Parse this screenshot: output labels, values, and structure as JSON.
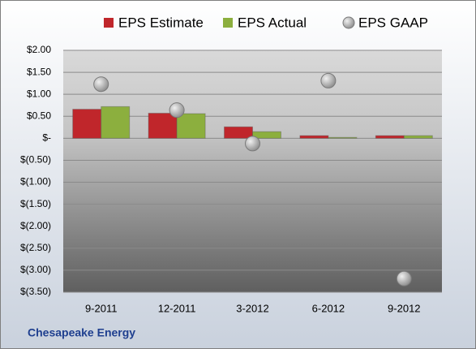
{
  "chart_data": {
    "type": "bar",
    "title": "Chesapeake Energy",
    "categories": [
      "9-2011",
      "12-2011",
      "3-2012",
      "6-2012",
      "9-2012"
    ],
    "series": [
      {
        "name": "EPS Estimate",
        "type": "bar",
        "color": "#c0262b",
        "values": [
          0.66,
          0.57,
          0.26,
          0.06,
          0.06
        ]
      },
      {
        "name": "EPS Actual",
        "type": "bar",
        "color": "#8caf3e",
        "values": [
          0.72,
          0.56,
          0.15,
          0.02,
          0.06
        ]
      },
      {
        "name": "EPS GAAP",
        "type": "scatter",
        "color": "#a6a6a6",
        "values": [
          1.23,
          0.64,
          -0.12,
          1.31,
          -3.19
        ]
      }
    ],
    "ylim": [
      -3.5,
      2.0
    ],
    "yticks": [
      {
        "value": 2.0,
        "label": "$2.00"
      },
      {
        "value": 1.5,
        "label": "$1.50"
      },
      {
        "value": 1.0,
        "label": "$1.00"
      },
      {
        "value": 0.5,
        "label": "$0.50"
      },
      {
        "value": 0,
        "label": "$-"
      },
      {
        "value": -0.5,
        "label": "$(0.50)"
      },
      {
        "value": -1.0,
        "label": "$(1.00)"
      },
      {
        "value": -1.5,
        "label": "$(1.50)"
      },
      {
        "value": -2.0,
        "label": "$(2.00)"
      },
      {
        "value": -2.5,
        "label": "$(2.50)"
      },
      {
        "value": -3.0,
        "label": "$(3.00)"
      },
      {
        "value": -3.5,
        "label": "$(3.50)"
      }
    ],
    "grid": true
  }
}
